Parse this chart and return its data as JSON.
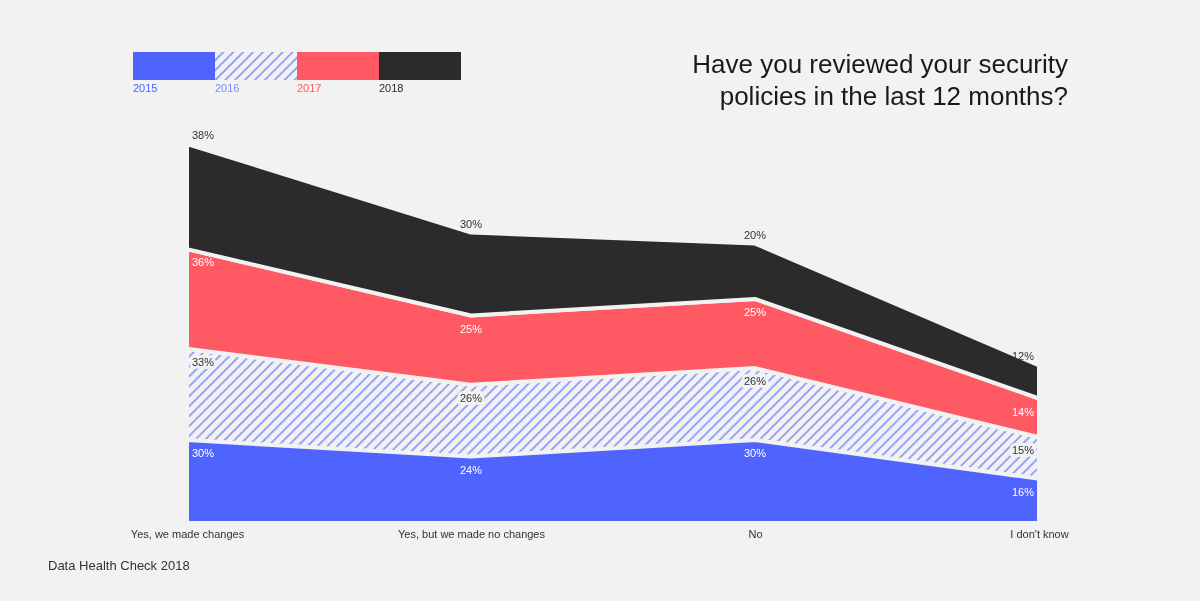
{
  "chart_data": {
    "type": "area",
    "title": "Have you reviewed your security policies in the last 12 months?",
    "categories": [
      "Yes, we made changes",
      "Yes, but we made no changes",
      "No",
      "I don't know"
    ],
    "stacked": true,
    "legend": "top left",
    "series": [
      {
        "name": "2015",
        "color": "#4f63ff",
        "values": [
          30,
          24,
          30,
          16
        ],
        "value_labels": [
          "30%",
          "24%",
          "30%",
          "16%"
        ]
      },
      {
        "name": "2016",
        "color": "#7a88ff",
        "values": [
          33,
          26,
          26,
          15
        ],
        "value_labels": [
          "33%",
          "26%",
          "26%",
          "15%"
        ]
      },
      {
        "name": "2017",
        "color": "#ff5a64",
        "values": [
          36,
          25,
          25,
          14
        ],
        "value_labels": [
          "36%",
          "25%",
          "25%",
          "14%"
        ]
      },
      {
        "name": "2018",
        "color": "#2b2b2b",
        "values": [
          38,
          30,
          20,
          12
        ],
        "value_labels": [
          "38%",
          "30%",
          "20%",
          "12%"
        ]
      }
    ],
    "annotations": [
      "Data Health Check 2018"
    ]
  }
}
